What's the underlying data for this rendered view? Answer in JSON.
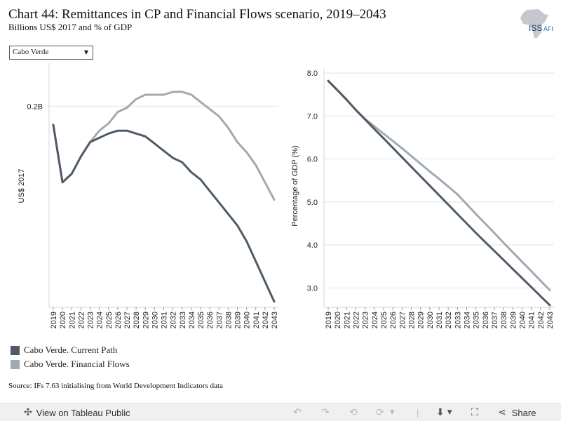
{
  "title": "Chart 44: Remittances in CP and Financial Flows scenario, 2019–2043",
  "subtitle": "Billions US$ 2017 and % of GDP",
  "logo_text": "ISS",
  "logo_suffix": "AFI",
  "selector": {
    "value": "Cabo Verde"
  },
  "legend": [
    {
      "label": "Cabo Verde. Current Path",
      "color": "#4f5b66"
    },
    {
      "label": "Cabo Verde. Financial Flows",
      "color": "#a1a9b1"
    }
  ],
  "source": "Source: IFs 7.63 initialising from World Development Indicators data",
  "toolbar": {
    "view_label": "View on Tableau Public",
    "share_label": "Share"
  },
  "chart_data": [
    {
      "type": "line",
      "xlabel": "",
      "ylabel": "US$ 2017",
      "ylim": [
        0.06,
        0.23
      ],
      "yticks": [
        {
          "value": 0.2,
          "label": "0.2B"
        }
      ],
      "grid": true,
      "x": [
        2019,
        2020,
        2021,
        2022,
        2023,
        2024,
        2025,
        2026,
        2027,
        2028,
        2029,
        2030,
        2031,
        2032,
        2033,
        2034,
        2035,
        2036,
        2037,
        2038,
        2039,
        2040,
        2041,
        2042,
        2043
      ],
      "series": [
        {
          "name": "Cabo Verde. Current Path",
          "color": "#4f5b66",
          "values": [
            0.187,
            0.147,
            0.153,
            0.165,
            0.175,
            0.178,
            0.181,
            0.183,
            0.183,
            0.181,
            0.179,
            0.174,
            0.169,
            0.164,
            0.161,
            0.154,
            0.149,
            0.141,
            0.133,
            0.125,
            0.117,
            0.106,
            0.092,
            0.078,
            0.064
          ]
        },
        {
          "name": "Cabo Verde. Financial Flows",
          "color": "#a1a9b1",
          "values": [
            0.187,
            0.147,
            0.153,
            0.165,
            0.175,
            0.183,
            0.188,
            0.196,
            0.199,
            0.205,
            0.208,
            0.208,
            0.208,
            0.21,
            0.21,
            0.208,
            0.203,
            0.198,
            0.193,
            0.185,
            0.175,
            0.168,
            0.159,
            0.147,
            0.135
          ]
        }
      ]
    },
    {
      "type": "line",
      "xlabel": "",
      "ylabel": "Percentage of GDP (%)",
      "ylim": [
        2.55,
        8.1
      ],
      "yticks": [
        {
          "value": 3,
          "label": "3.0"
        },
        {
          "value": 4,
          "label": "4.0"
        },
        {
          "value": 5,
          "label": "5.0"
        },
        {
          "value": 6,
          "label": "6.0"
        },
        {
          "value": 7,
          "label": "7.0"
        },
        {
          "value": 8,
          "label": "8.0"
        }
      ],
      "grid": true,
      "x": [
        2019,
        2020,
        2021,
        2022,
        2023,
        2024,
        2025,
        2026,
        2027,
        2028,
        2029,
        2030,
        2031,
        2032,
        2033,
        2034,
        2035,
        2036,
        2037,
        2038,
        2039,
        2040,
        2041,
        2042,
        2043
      ],
      "series": [
        {
          "name": "Cabo Verde. Current Path",
          "color": "#4f5b66",
          "values": [
            7.82,
            7.6,
            7.38,
            7.14,
            6.92,
            6.7,
            6.48,
            6.26,
            6.04,
            5.82,
            5.6,
            5.38,
            5.16,
            4.94,
            4.72,
            4.5,
            4.28,
            4.07,
            3.86,
            3.65,
            3.44,
            3.23,
            3.02,
            2.81,
            2.6
          ]
        },
        {
          "name": "Cabo Verde. Financial Flows",
          "color": "#a1a9b1",
          "values": [
            7.82,
            7.6,
            7.38,
            7.14,
            6.93,
            6.76,
            6.59,
            6.42,
            6.25,
            6.07,
            5.89,
            5.71,
            5.54,
            5.36,
            5.18,
            4.95,
            4.72,
            4.5,
            4.28,
            4.05,
            3.83,
            3.61,
            3.39,
            3.17,
            2.95
          ]
        }
      ]
    }
  ]
}
